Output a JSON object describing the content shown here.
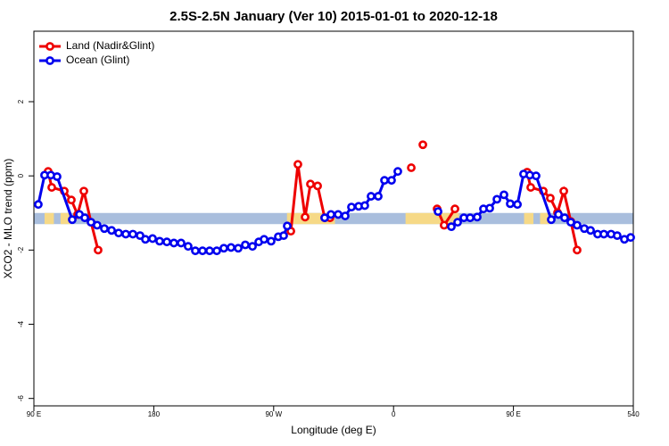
{
  "chart_data": {
    "type": "line",
    "title": "2.5S-2.5N January (Ver 10)   2015-01-01 to 2020-12-18",
    "x_label": "Longitude (deg E)",
    "y_label": "XCO2 - MLO trend (ppm)",
    "xlim": [
      90,
      540
    ],
    "ylim": [
      -6.2,
      3.9
    ],
    "xticks": [
      {
        "value": 90,
        "label": "90 E"
      },
      180,
      {
        "value": 270,
        "label": "90 W"
      },
      {
        "value": 360,
        "label": "0"
      },
      {
        "value": 450,
        "label": "90 E"
      },
      540
    ],
    "yticks": [
      2,
      0,
      -2,
      -4,
      -6
    ],
    "legend": "top-left",
    "band": {
      "ylim": [
        -1.3,
        -1.0
      ],
      "color": "#a9bedd",
      "segments": [
        {
          "xlim": [
            98,
            105
          ],
          "color": "#f6d987"
        },
        {
          "xlim": [
            110,
            118
          ],
          "color": "#f6d987"
        },
        {
          "xlim": [
            280,
            316
          ],
          "color": "#f6d987"
        },
        {
          "xlim": [
            369,
            409
          ],
          "color": "#f6d987"
        },
        {
          "xlim": [
            458,
            465
          ],
          "color": "#f6d987"
        },
        {
          "xlim": [
            470,
            477
          ],
          "color": "#f6d987"
        }
      ]
    },
    "series": [
      {
        "name": "Land (Nadir&Glint)",
        "color": "#ee0000",
        "x": [
          100.7,
          103.4,
          112.8,
          118.1,
          122.8,
          127.5,
          132.9,
          138.2,
          null,
          282.9,
          288.2,
          293.6,
          297.6,
          303.0,
          308.3,
          312.3,
          null,
          373.3,
          null,
          382.0,
          null,
          392.7,
          398.0,
          406.1,
          null,
          460.3,
          463.0,
          472.4,
          477.7,
          483.1,
          487.8,
          493.1,
          497.8
        ],
        "values": [
          0.12,
          -0.31,
          -0.41,
          -0.65,
          -1.04,
          -0.41,
          -1.25,
          -2.0,
          null,
          -1.49,
          0.31,
          -1.11,
          -0.22,
          -0.27,
          -1.13,
          -1.13,
          null,
          0.22,
          null,
          0.84,
          null,
          -0.89,
          -1.33,
          -0.89,
          null,
          0.1,
          -0.31,
          -0.41,
          -0.6,
          -0.99,
          -0.41,
          -1.23,
          -2.0
        ]
      },
      {
        "name": "Ocean (Glint)",
        "color": "#0000ee",
        "x": [
          93.3,
          98.0,
          102.7,
          107.4,
          118.8,
          124.2,
          128.2,
          132.9,
          137.5,
          142.9,
          148.3,
          153.6,
          159.0,
          164.3,
          169.7,
          173.7,
          179.1,
          184.4,
          189.8,
          195.1,
          200.5,
          205.8,
          211.2,
          216.6,
          221.9,
          227.3,
          232.6,
          238.0,
          243.4,
          248.7,
          254.1,
          258.8,
          262.8,
          268.1,
          273.5,
          277.5,
          280.2,
          null,
          308.3,
          313.0,
          318.4,
          323.7,
          328.4,
          333.8,
          338.4,
          343.1,
          348.5,
          353.2,
          358.5,
          363.2,
          null,
          393.4,
          null,
          403.4,
          408.1,
          412.8,
          417.5,
          422.8,
          427.5,
          432.2,
          437.6,
          442.9,
          447.6,
          453.0,
          457.6,
          462.3,
          467.0,
          478.4,
          483.8,
          488.4,
          493.1,
          497.8,
          503.2,
          507.9,
          513.2,
          517.9,
          523.3,
          527.9,
          533.3,
          538.0
        ],
        "values": [
          -0.77,
          0.02,
          0.02,
          -0.02,
          -1.18,
          -1.04,
          -1.13,
          -1.25,
          -1.33,
          -1.42,
          -1.47,
          -1.54,
          -1.57,
          -1.57,
          -1.61,
          -1.71,
          -1.69,
          -1.76,
          -1.78,
          -1.81,
          -1.81,
          -1.9,
          -2.02,
          -2.02,
          -2.02,
          -2.02,
          -1.95,
          -1.93,
          -1.95,
          -1.86,
          -1.9,
          -1.78,
          -1.71,
          -1.76,
          -1.64,
          -1.61,
          -1.35,
          null,
          -1.13,
          -1.04,
          -1.04,
          -1.08,
          -0.84,
          -0.82,
          -0.8,
          -0.55,
          -0.55,
          -0.12,
          -0.12,
          0.12,
          null,
          -0.96,
          null,
          -1.37,
          -1.25,
          -1.13,
          -1.13,
          -1.11,
          -0.89,
          -0.87,
          -0.63,
          -0.51,
          -0.75,
          -0.77,
          0.05,
          0.02,
          0.0,
          -1.18,
          -1.04,
          -1.13,
          -1.25,
          -1.33,
          -1.42,
          -1.47,
          -1.57,
          -1.57,
          -1.57,
          -1.61,
          -1.71,
          -1.66
        ]
      }
    ]
  }
}
